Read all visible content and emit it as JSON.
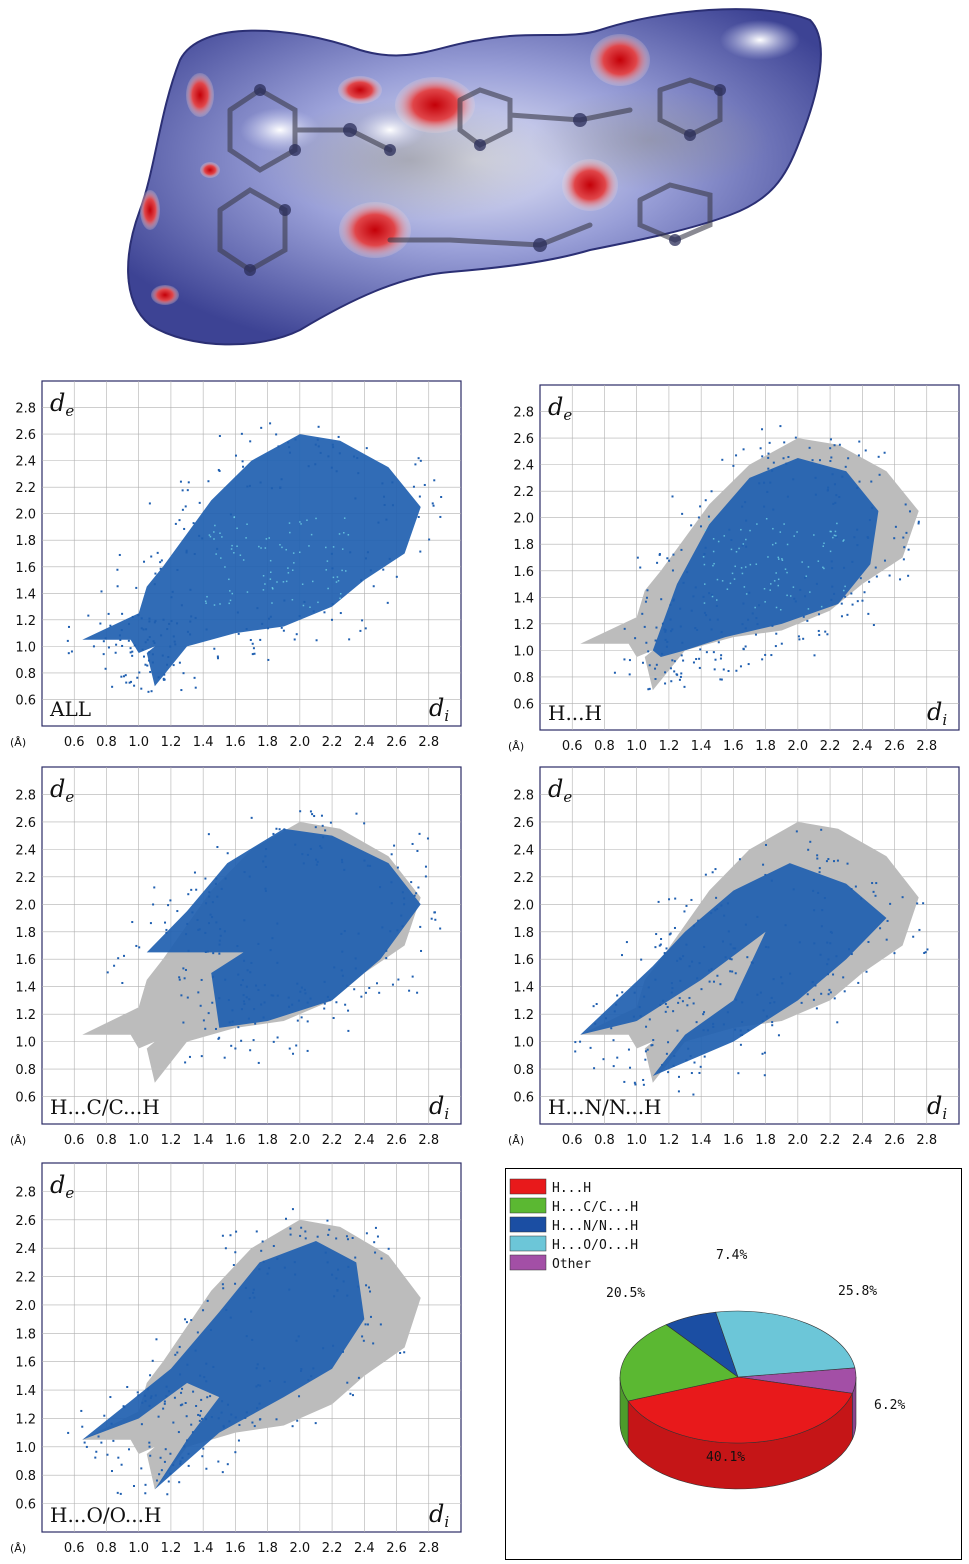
{
  "chart_data": [
    {
      "type": "scatter",
      "panel": "ALL",
      "label": "ALL",
      "xlabel": "d",
      "xlabel_sub": "i",
      "ylabel": "d",
      "ylabel_sub": "e",
      "unit_label": "(Å)",
      "xlim": [
        0.4,
        3.0
      ],
      "ylim": [
        0.4,
        3.0
      ],
      "x_ticks": [
        "0.6",
        "0.8",
        "1.0",
        "1.2",
        "1.4",
        "1.6",
        "1.8",
        "2.0",
        "2.2",
        "2.4",
        "2.6",
        "2.8"
      ],
      "y_ticks": [
        "0.6",
        "0.8",
        "1.0",
        "1.2",
        "1.4",
        "1.6",
        "1.8",
        "2.0",
        "2.2",
        "2.4",
        "2.6",
        "2.8"
      ]
    },
    {
      "type": "scatter",
      "panel": "H...H",
      "label": "H...H",
      "xlabel": "d",
      "xlabel_sub": "i",
      "ylabel": "d",
      "ylabel_sub": "e",
      "unit_label": "(Å)",
      "xlim": [
        0.4,
        3.0
      ],
      "ylim": [
        0.4,
        3.0
      ],
      "x_ticks": [
        "0.6",
        "0.8",
        "1.0",
        "1.2",
        "1.4",
        "1.6",
        "1.8",
        "2.0",
        "2.2",
        "2.4",
        "2.6",
        "2.8"
      ],
      "y_ticks": [
        "0.6",
        "0.8",
        "1.0",
        "1.2",
        "1.4",
        "1.6",
        "1.8",
        "2.0",
        "2.2",
        "2.4",
        "2.6",
        "2.8"
      ]
    },
    {
      "type": "scatter",
      "panel": "H...C/C...H",
      "label": "H...C/C...H",
      "xlabel": "d",
      "xlabel_sub": "i",
      "ylabel": "d",
      "ylabel_sub": "e",
      "unit_label": "(Å)",
      "xlim": [
        0.4,
        3.0
      ],
      "ylim": [
        0.4,
        3.0
      ],
      "x_ticks": [
        "0.6",
        "0.8",
        "1.0",
        "1.2",
        "1.4",
        "1.6",
        "1.8",
        "2.0",
        "2.2",
        "2.4",
        "2.6",
        "2.8"
      ],
      "y_ticks": [
        "0.6",
        "0.8",
        "1.0",
        "1.2",
        "1.4",
        "1.6",
        "1.8",
        "2.0",
        "2.2",
        "2.4",
        "2.6",
        "2.8"
      ]
    },
    {
      "type": "scatter",
      "panel": "H...N/N...H",
      "label": "H...N/N...H",
      "xlabel": "d",
      "xlabel_sub": "i",
      "ylabel": "d",
      "ylabel_sub": "e",
      "unit_label": "(Å)",
      "xlim": [
        0.4,
        3.0
      ],
      "ylim": [
        0.4,
        3.0
      ],
      "x_ticks": [
        "0.6",
        "0.8",
        "1.0",
        "1.2",
        "1.4",
        "1.6",
        "1.8",
        "2.0",
        "2.2",
        "2.4",
        "2.6",
        "2.8"
      ],
      "y_ticks": [
        "0.6",
        "0.8",
        "1.0",
        "1.2",
        "1.4",
        "1.6",
        "1.8",
        "2.0",
        "2.2",
        "2.4",
        "2.6",
        "2.8"
      ]
    },
    {
      "type": "scatter",
      "panel": "H...O/O...H",
      "label": "H...O/O...H",
      "xlabel": "d",
      "xlabel_sub": "i",
      "ylabel": "d",
      "ylabel_sub": "e",
      "unit_label": "(Å)",
      "xlim": [
        0.4,
        3.0
      ],
      "ylim": [
        0.4,
        3.0
      ],
      "x_ticks": [
        "0.6",
        "0.8",
        "1.0",
        "1.2",
        "1.4",
        "1.6",
        "1.8",
        "2.0",
        "2.2",
        "2.4",
        "2.6",
        "2.8"
      ],
      "y_ticks": [
        "0.6",
        "0.8",
        "1.0",
        "1.2",
        "1.4",
        "1.6",
        "1.8",
        "2.0",
        "2.2",
        "2.4",
        "2.6",
        "2.8"
      ]
    },
    {
      "type": "pie",
      "style": "3d",
      "labels": [
        "H...H",
        "H...C/C...H",
        "H...N/N...H",
        "H...O/O...H",
        "Other"
      ],
      "values": [
        40.1,
        20.5,
        7.4,
        25.8,
        6.2
      ],
      "value_labels": [
        "40.1%",
        "20.5%",
        "7.4%",
        "25.8%",
        "6.2%"
      ],
      "colors": [
        "#e8191b",
        "#5bb832",
        "#1b4ea3",
        "#6cc6d8",
        "#a34fa6"
      ],
      "legend_position": "top-left"
    }
  ],
  "colors": {
    "scatter_blue": "#1f5fb0",
    "scatter_highlight": "#6fd3e6",
    "scatter_gray": "#bcbcbc",
    "grid": "#b0b0b0",
    "surface_blue": "#7b80c4",
    "surface_red": "#d9141b"
  }
}
